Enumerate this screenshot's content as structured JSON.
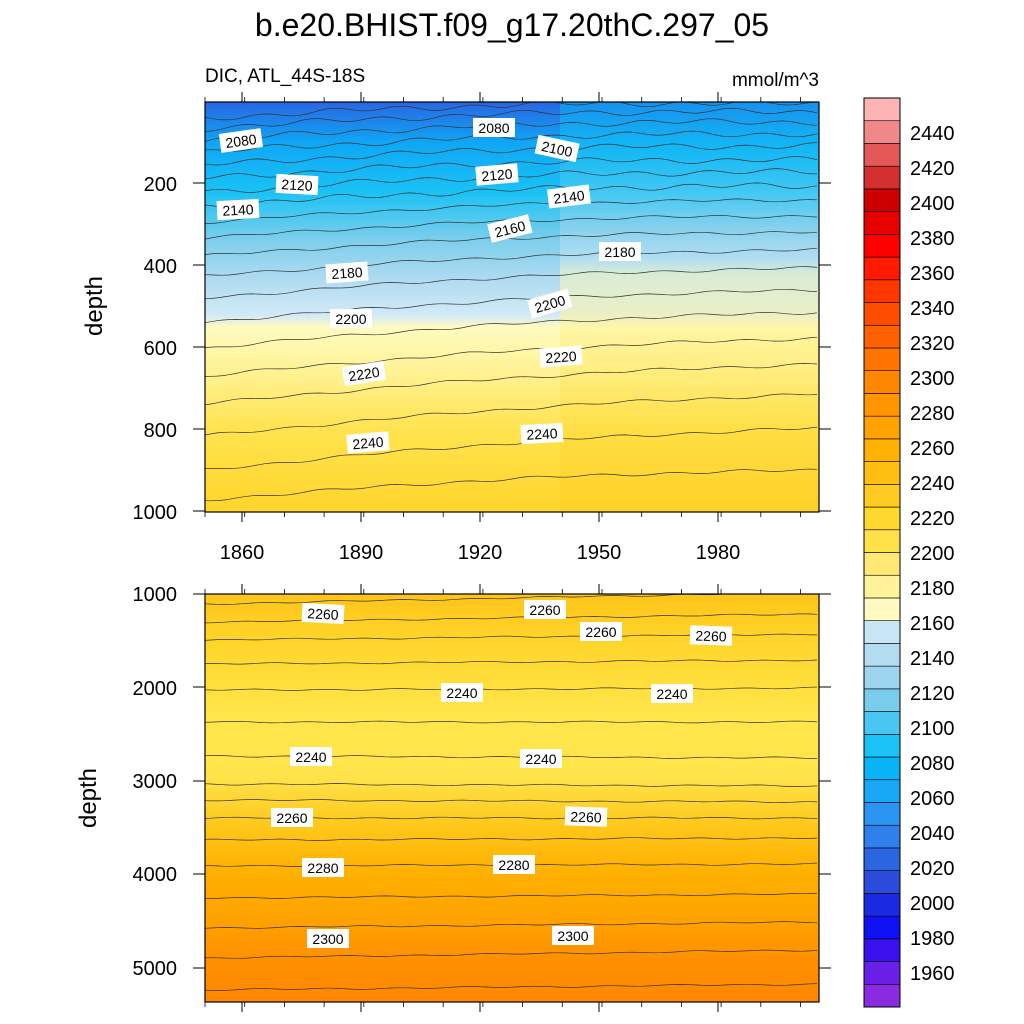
{
  "chart_data": {
    "type": "contour",
    "title": "b.e20.BHIST.f09_g17.20thC.297_05",
    "subtitle_left": "DIC, ATL_44S-18S",
    "subtitle_right": "mmol/m^3",
    "x_values": [
      1850,
      2005
    ],
    "xticks": [
      "1860",
      "1890",
      "1920",
      "1950",
      "1980"
    ],
    "panels": [
      {
        "name": "upper",
        "ylabel": "depth",
        "ylim": [
          0,
          1000
        ],
        "yticks": [
          "200",
          "400",
          "600",
          "800",
          "1000"
        ],
        "contour_labels": [
          "2080",
          "2080",
          "2100",
          "2120",
          "2120",
          "2140",
          "2140",
          "2160",
          "2180",
          "2180",
          "2200",
          "2200",
          "2220",
          "2220",
          "2240",
          "2240"
        ]
      },
      {
        "name": "lower",
        "ylabel": "depth",
        "ylim": [
          1000,
          5400
        ],
        "yticks": [
          "1000",
          "2000",
          "3000",
          "4000",
          "5000"
        ],
        "contour_labels": [
          "2260",
          "2260",
          "2260",
          "2260",
          "2240",
          "2240",
          "2240",
          "2240",
          "2260",
          "2260",
          "2280",
          "2280",
          "2300",
          "2300"
        ]
      }
    ],
    "colorbar": {
      "levels": [
        "1960",
        "1980",
        "2000",
        "2020",
        "2040",
        "2060",
        "2080",
        "2100",
        "2120",
        "2140",
        "2160",
        "2180",
        "2200",
        "2220",
        "2240",
        "2260",
        "2280",
        "2300",
        "2320",
        "2340",
        "2360",
        "2380",
        "2400",
        "2420",
        "2440"
      ],
      "colors": [
        "#8a2be2",
        "#6a1fe8",
        "#3a10ee",
        "#1010f5",
        "#1a2ae0",
        "#2a4bdc",
        "#2a66e2",
        "#2f7fec",
        "#2a95f2",
        "#19a8f5",
        "#08b3f7",
        "#1ac2f5",
        "#4ac6f2",
        "#78cdec",
        "#9dd5ee",
        "#b3dcf1",
        "#c7e5f5",
        "#fffbc0",
        "#fff39a",
        "#ffe974",
        "#ffe24a",
        "#ffd82e",
        "#ffcb20",
        "#ffbe12",
        "#ffb100",
        "#ffa200",
        "#ff9500",
        "#ff8700",
        "#ff7500",
        "#ff6000",
        "#ff4d00",
        "#ff3600",
        "#ff1a00",
        "#ff0000",
        "#e60000",
        "#cc0000",
        "#d43030",
        "#e45858",
        "#f08888",
        "#fcb4b4"
      ]
    }
  }
}
